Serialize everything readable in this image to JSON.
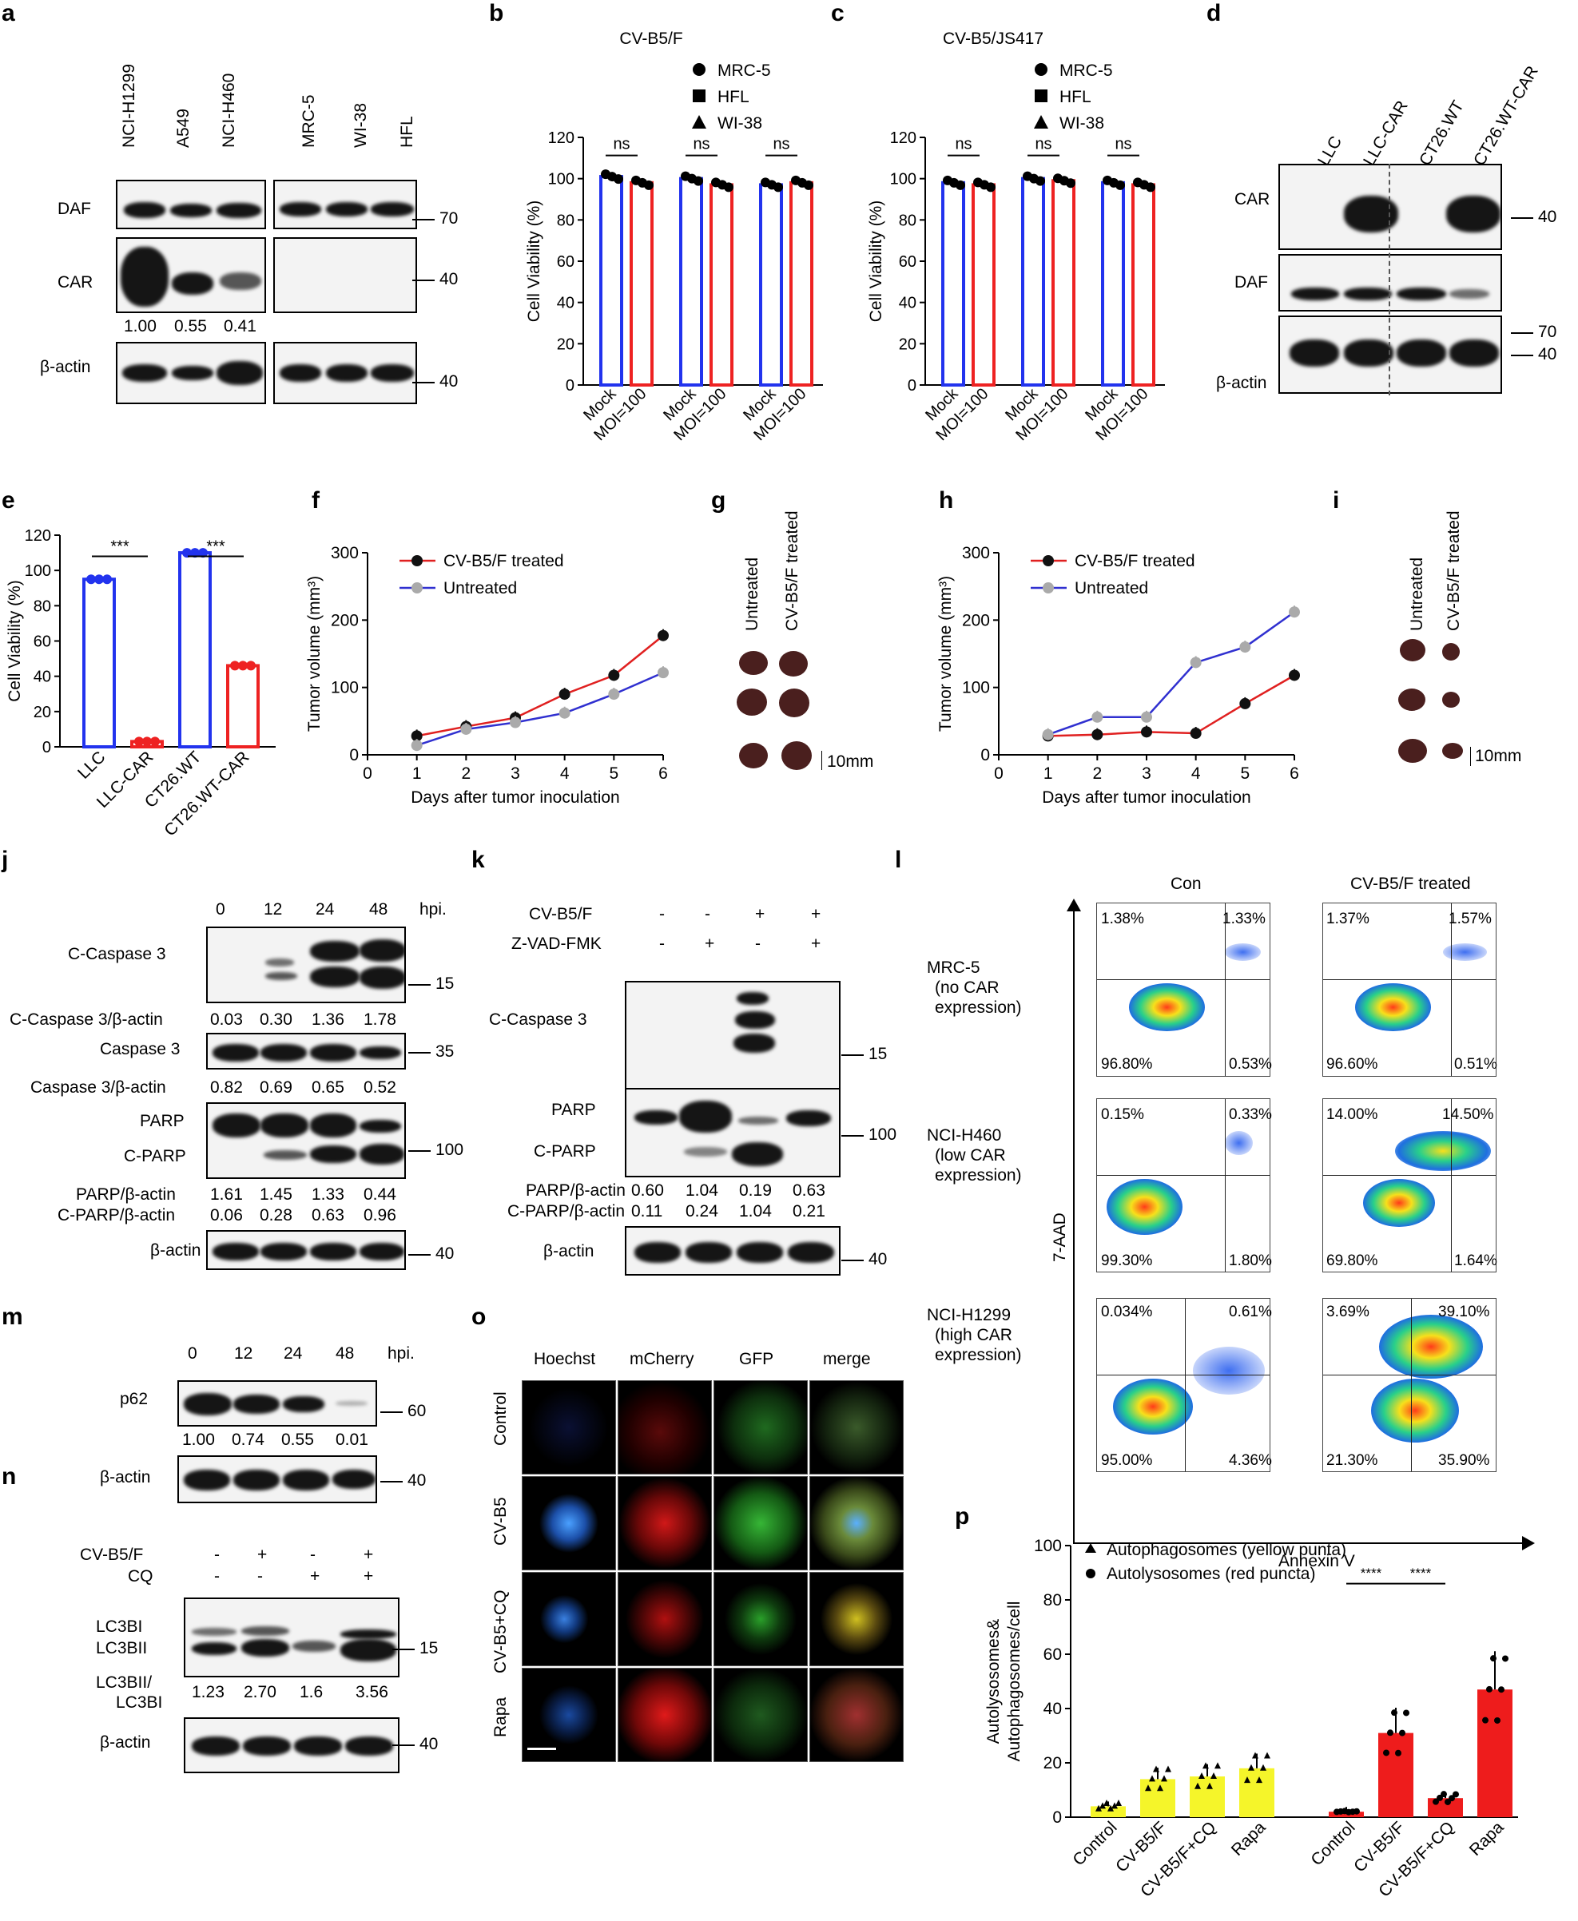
{
  "panels": {
    "a": {
      "label": "a",
      "lanes_left": [
        "NCI-H1299",
        "A549",
        "NCI-H460"
      ],
      "lanes_right": [
        "MRC-5",
        "WI-38",
        "HFL"
      ],
      "rows": [
        "DAF",
        "CAR",
        "β-actin"
      ],
      "markers": [
        "70",
        "40",
        "40"
      ],
      "car_quant": [
        "1.00",
        "0.55",
        "0.41"
      ]
    },
    "d": {
      "label": "d",
      "lanes": [
        "LLC",
        "LLC-CAR",
        "CT26.WT",
        "CT26.WT-CAR"
      ],
      "rows": [
        "CAR",
        "DAF",
        "β-actin"
      ],
      "markers": [
        "40",
        "70",
        "40"
      ]
    },
    "g": {
      "label": "g",
      "groups": [
        "Untreated",
        "CV-B5/F treated"
      ],
      "scale": "10mm"
    },
    "i": {
      "label": "i",
      "groups": [
        "Untreated",
        "CV-B5/F treated"
      ],
      "scale": "10mm"
    },
    "j": {
      "label": "j",
      "lanes": [
        "0",
        "12",
        "24",
        "48"
      ],
      "unit": "hpi.",
      "rows": [
        "C-Caspase 3",
        "Caspase 3",
        "PARP",
        "C-PARP",
        "β-actin"
      ],
      "quant": [
        {
          "label": "C-Caspase 3/β-actin",
          "values": [
            "0.03",
            "0.30",
            "1.36",
            "1.78"
          ]
        },
        {
          "label": "Caspase 3/β-actin",
          "values": [
            "0.82",
            "0.69",
            "0.65",
            "0.52"
          ]
        },
        {
          "label": "PARP/β-actin",
          "values": [
            "1.61",
            "1.45",
            "1.33",
            "0.44"
          ]
        },
        {
          "label": "C-PARP/β-actin",
          "values": [
            "0.06",
            "0.28",
            "0.63",
            "0.96"
          ]
        }
      ],
      "markers": [
        "15",
        "35",
        "100",
        "40"
      ]
    },
    "k": {
      "label": "k",
      "conditions": [
        {
          "name": "CV-B5/F",
          "signs": [
            "-",
            "-",
            "+",
            "+"
          ]
        },
        {
          "name": "Z-VAD-FMK",
          "signs": [
            "-",
            "+",
            "-",
            "+"
          ]
        }
      ],
      "rows": [
        "C-Caspase 3",
        "PARP",
        "C-PARP",
        "β-actin"
      ],
      "quant": [
        {
          "label": "PARP/β-actin",
          "values": [
            "0.60",
            "1.04",
            "0.19",
            "0.63"
          ]
        },
        {
          "label": "C-PARP/β-actin",
          "values": [
            "0.11",
            "0.24",
            "1.04",
            "0.21"
          ]
        }
      ],
      "markers": [
        "15",
        "100",
        "40"
      ]
    },
    "l": {
      "label": "l",
      "columns": [
        "Con",
        "CV-B5/F treated"
      ],
      "yaxis": "7-AAD",
      "xaxis": "Annexin V",
      "rows": [
        {
          "name": [
            "MRC-5",
            "(no CAR",
            "expression)"
          ],
          "con": [
            "1.38%",
            "1.33%",
            "96.80%",
            "0.53%"
          ],
          "trt": [
            "1.37%",
            "1.57%",
            "96.60%",
            "0.51%"
          ]
        },
        {
          "name": [
            "NCI-H460",
            "(low CAR",
            "expression)"
          ],
          "con": [
            "0.15%",
            "0.33%",
            "99.30%",
            "1.80%"
          ],
          "trt": [
            "14.00%",
            "14.50%",
            "69.80%",
            "1.64%"
          ]
        },
        {
          "name": [
            "NCI-H1299",
            "(high CAR",
            "expression)"
          ],
          "con": [
            "0.034%",
            "0.61%",
            "95.00%",
            "4.36%"
          ],
          "trt": [
            "3.69%",
            "39.10%",
            "21.30%",
            "35.90%"
          ]
        }
      ]
    },
    "m": {
      "label": "m",
      "lanes": [
        "0",
        "12",
        "24",
        "48"
      ],
      "unit": "hpi.",
      "rows": [
        "p62",
        "β-actin"
      ],
      "quant": [
        "1.00",
        "0.74",
        "0.55",
        "0.01"
      ],
      "markers": [
        "60",
        "40"
      ]
    },
    "n": {
      "label": "n",
      "conditions": [
        {
          "name": "CV-B5/F",
          "signs": [
            "-",
            "+",
            "-",
            "+"
          ]
        },
        {
          "name": "CQ",
          "signs": [
            "-",
            "-",
            "+",
            "+"
          ]
        }
      ],
      "rows": [
        "LC3BI",
        "LC3BII",
        "β-actin"
      ],
      "ratio_label_1": "LC3BII/",
      "ratio_label_2": "LC3BI",
      "ratio": [
        "1.23",
        "2.70",
        "1.6",
        "3.56"
      ],
      "markers": [
        "15",
        "40"
      ]
    },
    "o": {
      "label": "o",
      "columns": [
        "Hoechst",
        "mCherry",
        "GFP",
        "merge"
      ],
      "rows": [
        "Control",
        "CV-B5",
        "CV-B5+CQ",
        "Rapa"
      ]
    }
  },
  "chart_data": [
    {
      "id": "b",
      "type": "bar",
      "title": "CV-B5/F",
      "ylabel": "Cell Viability (%)",
      "ylim": [
        0,
        120
      ],
      "yticks": [
        "0",
        "20",
        "40",
        "60",
        "80",
        "100",
        "120"
      ],
      "legend": [
        "MRC-5",
        "HFL",
        "WI-38"
      ],
      "categories": [
        "Mock",
        "MOI=100",
        "Mock",
        "MOI=100",
        "Mock",
        "MOI=100"
      ],
      "values": [
        101,
        98,
        100,
        97,
        97,
        98
      ],
      "colors": [
        "#2233ee",
        "#ee2222",
        "#2233ee",
        "#ee2222",
        "#2233ee",
        "#ee2222"
      ],
      "sig": [
        "ns",
        "ns",
        "ns"
      ]
    },
    {
      "id": "c",
      "type": "bar",
      "title": "CV-B5/JS417",
      "ylabel": "Cell Viability (%)",
      "ylim": [
        0,
        120
      ],
      "yticks": [
        "0",
        "20",
        "40",
        "60",
        "80",
        "100",
        "120"
      ],
      "legend": [
        "MRC-5",
        "HFL",
        "WI-38"
      ],
      "categories": [
        "Mock",
        "MOI=100",
        "Mock",
        "MOI=100",
        "Mock",
        "MOI=100"
      ],
      "values": [
        98,
        97,
        100,
        99,
        98,
        97
      ],
      "colors": [
        "#2233ee",
        "#ee2222",
        "#2233ee",
        "#ee2222",
        "#2233ee",
        "#ee2222"
      ],
      "sig": [
        "ns",
        "ns",
        "ns"
      ]
    },
    {
      "id": "e",
      "type": "bar",
      "title": "",
      "ylabel": "Cell Viability (%)",
      "ylim": [
        0,
        120
      ],
      "yticks": [
        "0",
        "20",
        "40",
        "60",
        "80",
        "100",
        "120"
      ],
      "categories": [
        "LLC",
        "LLC-CAR",
        "CT26.WT",
        "CT26.WT-CAR"
      ],
      "values": [
        95,
        3,
        110,
        46
      ],
      "colors": [
        "#2233ee",
        "#ee2222",
        "#2233ee",
        "#ee2222"
      ],
      "sig": [
        "***",
        "***"
      ]
    },
    {
      "id": "f",
      "type": "line",
      "title": "",
      "xlabel": "Days after tumor inoculation",
      "ylabel": "Tumor volume (mm³)",
      "xlim": [
        0,
        6
      ],
      "ylim": [
        0,
        300
      ],
      "xticks": [
        "0",
        "1",
        "2",
        "3",
        "4",
        "5",
        "6"
      ],
      "yticks": [
        "0",
        "100",
        "200",
        "300"
      ],
      "x": [
        1,
        2,
        3,
        4,
        5,
        6
      ],
      "series": [
        {
          "name": "CV-B5/F treated",
          "values": [
            28,
            42,
            55,
            90,
            118,
            177
          ],
          "color": "#e02020",
          "marker": "#111111"
        },
        {
          "name": "Untreated",
          "values": [
            14,
            38,
            48,
            62,
            90,
            122
          ],
          "color": "#3030d0",
          "marker": "#aaaaaa"
        }
      ]
    },
    {
      "id": "h",
      "type": "line",
      "title": "",
      "xlabel": "Days after tumor inoculation",
      "ylabel": "Tumor volume (mm³)",
      "xlim": [
        0,
        6
      ],
      "ylim": [
        0,
        300
      ],
      "xticks": [
        "0",
        "1",
        "2",
        "3",
        "4",
        "5",
        "6"
      ],
      "yticks": [
        "0",
        "100",
        "200",
        "300"
      ],
      "x": [
        1,
        2,
        3,
        4,
        5,
        6
      ],
      "series": [
        {
          "name": "CV-B5/F treated",
          "values": [
            28,
            30,
            34,
            32,
            76,
            118
          ],
          "color": "#e02020",
          "marker": "#111111"
        },
        {
          "name": "Untreated",
          "values": [
            30,
            56,
            56,
            137,
            160,
            212
          ],
          "color": "#3030d0",
          "marker": "#aaaaaa"
        }
      ]
    },
    {
      "id": "p",
      "type": "bar",
      "title": "",
      "ylabel_1": "Autolysosomes&",
      "ylabel_2": "Autophagosomes/cell",
      "ylim": [
        0,
        100
      ],
      "yticks": [
        "0",
        "20",
        "40",
        "60",
        "80",
        "100"
      ],
      "legend": [
        "Autophagosomes (yellow punta)",
        "Autolysosomes (red puncta)"
      ],
      "categories": [
        "Control",
        "CV-B5/F",
        "CV-B5/F+CQ",
        "Rapa",
        "Control",
        "CV-B5/F",
        "CV-B5/F+CQ",
        "Rapa"
      ],
      "values": [
        4,
        14,
        15,
        18,
        2,
        31,
        7,
        47
      ],
      "colors": [
        "#f5f52a",
        "#f5f52a",
        "#f5f52a",
        "#f5f52a",
        "#ee1c1c",
        "#ee1c1c",
        "#ee1c1c",
        "#ee1c1c"
      ],
      "sig": [
        "****",
        "****"
      ]
    }
  ]
}
